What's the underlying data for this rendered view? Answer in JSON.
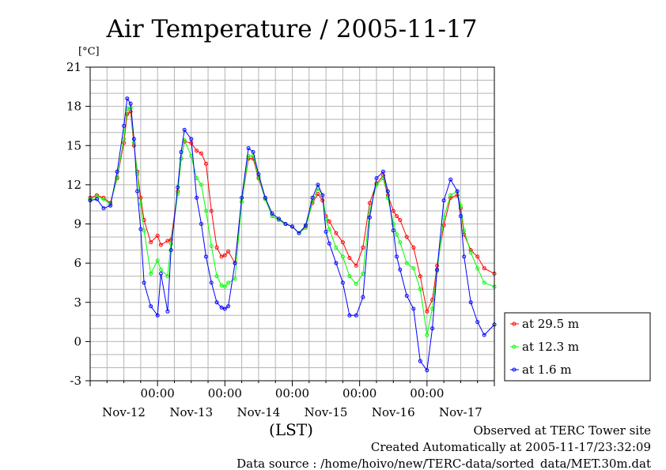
{
  "chart_data": {
    "type": "line",
    "title": "Air Temperature / 2005-11-17",
    "ylabel_unit": "[°C]",
    "xlabel": "(LST)",
    "ylim": [
      -3,
      21
    ],
    "yticks": [
      -3,
      0,
      3,
      6,
      9,
      12,
      15,
      18,
      21
    ],
    "xlim": [
      0,
      6
    ],
    "xticks_time": [
      "00:00",
      "00:00",
      "00:00",
      "00:00",
      "00:00"
    ],
    "xticks_time_pos": [
      1,
      2,
      3,
      4,
      5
    ],
    "xticks_date": [
      "Nov-12",
      "Nov-13",
      "Nov-14",
      "Nov-15",
      "Nov-16",
      "Nov-17"
    ],
    "xticks_date_pos": [
      0.5,
      1.5,
      2.5,
      3.5,
      4.5,
      5.5
    ],
    "grid": true,
    "legend_position": "right",
    "x_unit": "days since Nov-12 00:00",
    "series": [
      {
        "name": "at 29.5 m",
        "color": "#ff0000",
        "x": [
          0,
          0.1,
          0.2,
          0.3,
          0.4,
          0.5,
          0.55,
          0.6,
          0.65,
          0.7,
          0.75,
          0.8,
          0.9,
          1.0,
          1.05,
          1.15,
          1.2,
          1.3,
          1.35,
          1.4,
          1.5,
          1.58,
          1.65,
          1.72,
          1.8,
          1.88,
          1.95,
          2.0,
          2.05,
          2.15,
          2.25,
          2.35,
          2.42,
          2.5,
          2.6,
          2.7,
          2.8,
          2.9,
          3.0,
          3.1,
          3.2,
          3.3,
          3.38,
          3.45,
          3.5,
          3.55,
          3.65,
          3.75,
          3.85,
          3.95,
          4.05,
          4.15,
          4.25,
          4.35,
          4.42,
          4.5,
          4.55,
          4.6,
          4.7,
          4.8,
          4.9,
          5.0,
          5.08,
          5.15,
          5.25,
          5.35,
          5.45,
          5.5,
          5.55,
          5.65,
          5.75,
          5.85,
          6.0
        ],
        "y": [
          11.0,
          11.2,
          11.0,
          10.6,
          12.5,
          15.2,
          17.4,
          17.6,
          15.0,
          13.0,
          11.0,
          9.3,
          7.6,
          8.1,
          7.4,
          7.7,
          7.8,
          11.5,
          14.0,
          15.3,
          15.2,
          14.6,
          14.4,
          13.6,
          10.0,
          7.2,
          6.5,
          6.6,
          6.9,
          6.0,
          10.7,
          14.0,
          14.0,
          12.5,
          10.9,
          9.6,
          9.3,
          9.0,
          8.8,
          8.3,
          8.8,
          10.6,
          11.3,
          10.8,
          9.6,
          9.2,
          8.3,
          7.6,
          6.4,
          5.8,
          7.2,
          10.6,
          12.1,
          12.7,
          11.2,
          10.0,
          9.6,
          9.3,
          8.0,
          7.2,
          5.0,
          2.3,
          3.2,
          5.8,
          8.9,
          11.0,
          11.2,
          10.2,
          8.2,
          7.0,
          6.5,
          5.6,
          5.2
        ]
      },
      {
        "name": "at 12.3 m",
        "color": "#00ff00",
        "x": [
          0,
          0.1,
          0.2,
          0.3,
          0.4,
          0.5,
          0.55,
          0.6,
          0.65,
          0.7,
          0.75,
          0.8,
          0.9,
          1.0,
          1.05,
          1.15,
          1.2,
          1.3,
          1.35,
          1.4,
          1.5,
          1.58,
          1.65,
          1.72,
          1.8,
          1.88,
          1.95,
          2.0,
          2.05,
          2.15,
          2.25,
          2.35,
          2.42,
          2.5,
          2.6,
          2.7,
          2.8,
          2.9,
          3.0,
          3.1,
          3.2,
          3.3,
          3.38,
          3.45,
          3.5,
          3.55,
          3.65,
          3.75,
          3.85,
          3.95,
          4.05,
          4.15,
          4.25,
          4.35,
          4.42,
          4.5,
          4.55,
          4.6,
          4.7,
          4.8,
          4.9,
          5.0,
          5.08,
          5.15,
          5.25,
          5.35,
          5.45,
          5.5,
          5.55,
          5.65,
          5.75,
          5.85,
          6.0
        ],
        "y": [
          10.9,
          11.1,
          10.9,
          10.5,
          12.6,
          15.5,
          17.8,
          17.9,
          15.2,
          12.8,
          10.5,
          8.5,
          5.2,
          6.2,
          5.5,
          5.0,
          7.5,
          11.3,
          14.0,
          15.4,
          14.2,
          12.5,
          12.0,
          10.0,
          7.3,
          5.0,
          4.3,
          4.2,
          4.5,
          4.8,
          10.7,
          14.2,
          14.2,
          12.6,
          10.9,
          9.6,
          9.3,
          9.0,
          8.8,
          8.3,
          8.7,
          10.7,
          11.7,
          11.2,
          9.4,
          8.6,
          7.2,
          6.5,
          5.0,
          4.4,
          5.2,
          10.0,
          12.0,
          12.5,
          11.0,
          9.0,
          8.2,
          7.6,
          6.0,
          5.6,
          4.0,
          0.5,
          2.5,
          5.4,
          9.5,
          11.2,
          11.5,
          10.4,
          8.5,
          6.8,
          5.6,
          4.5,
          4.2
        ]
      },
      {
        "name": "at 1.6 m",
        "color": "#0000ff",
        "x": [
          0,
          0.1,
          0.2,
          0.3,
          0.4,
          0.5,
          0.55,
          0.6,
          0.65,
          0.7,
          0.75,
          0.8,
          0.9,
          1.0,
          1.05,
          1.15,
          1.2,
          1.3,
          1.35,
          1.4,
          1.5,
          1.58,
          1.65,
          1.72,
          1.8,
          1.88,
          1.95,
          2.0,
          2.05,
          2.15,
          2.25,
          2.35,
          2.42,
          2.5,
          2.6,
          2.7,
          2.8,
          2.9,
          3.0,
          3.1,
          3.2,
          3.3,
          3.38,
          3.45,
          3.5,
          3.55,
          3.65,
          3.75,
          3.85,
          3.95,
          4.05,
          4.15,
          4.25,
          4.35,
          4.42,
          4.5,
          4.55,
          4.6,
          4.7,
          4.8,
          4.9,
          5.0,
          5.08,
          5.15,
          5.25,
          5.35,
          5.45,
          5.5,
          5.55,
          5.65,
          5.75,
          5.85,
          6.0
        ],
        "y": [
          10.8,
          10.9,
          10.2,
          10.4,
          13.0,
          16.5,
          18.6,
          18.2,
          15.5,
          11.5,
          8.6,
          4.5,
          2.7,
          2.0,
          5.2,
          2.3,
          7.0,
          11.8,
          14.5,
          16.2,
          15.5,
          11.0,
          9.0,
          6.5,
          4.5,
          3.0,
          2.6,
          2.5,
          2.7,
          6.0,
          11.0,
          14.8,
          14.5,
          12.8,
          11.0,
          9.8,
          9.4,
          9.0,
          8.8,
          8.3,
          8.9,
          11.0,
          12.0,
          11.2,
          8.4,
          7.5,
          6.0,
          4.5,
          2.0,
          2.0,
          3.4,
          9.5,
          12.5,
          13.0,
          11.5,
          8.5,
          6.5,
          5.5,
          3.5,
          2.5,
          -1.5,
          -2.2,
          1.0,
          5.5,
          10.8,
          12.4,
          11.5,
          9.6,
          6.5,
          3.0,
          1.5,
          0.5,
          1.3
        ]
      }
    ]
  },
  "footer": {
    "line1": "Observed at TERC Tower site",
    "line2": "Created Automatically at 2005-11-17/23:32:09",
    "line3": "Data source : /home/hoivo/new/TERC-data/sorted_data/MET.30m.dat"
  }
}
